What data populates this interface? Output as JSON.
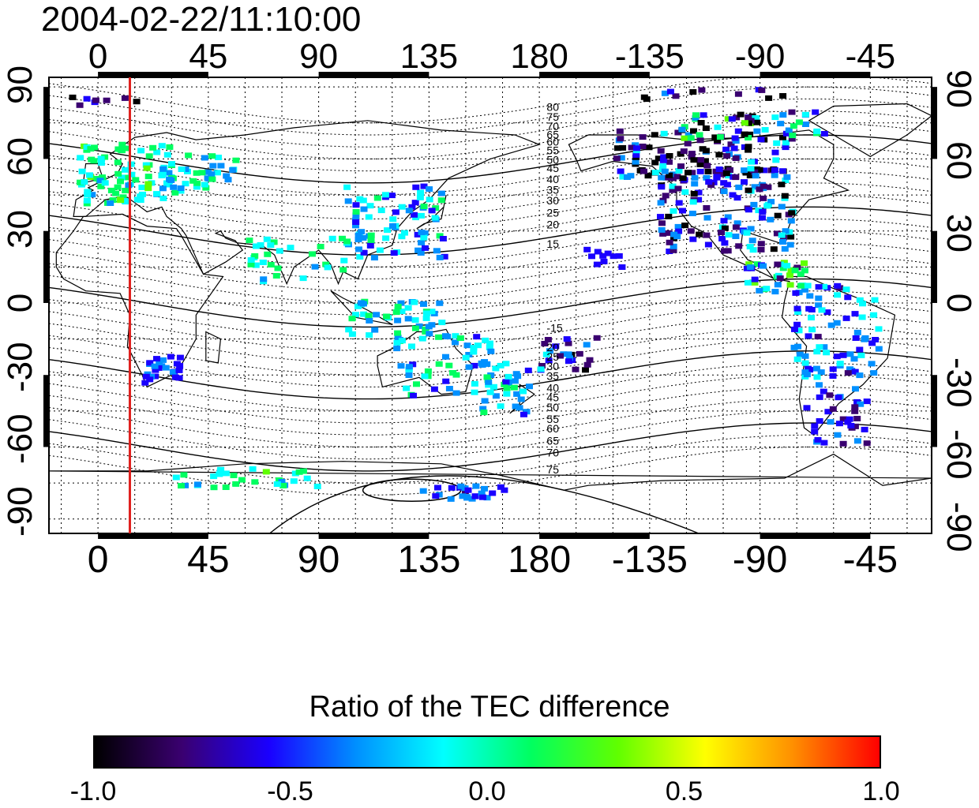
{
  "title": "2004-02-22/11:10:00",
  "map": {
    "top_axis_labels": [
      "0",
      "45",
      "90",
      "135",
      "180",
      "-135",
      "-90",
      "-45"
    ],
    "bottom_axis_labels": [
      "0",
      "45",
      "90",
      "135",
      "180",
      "-135",
      "-90",
      "-45"
    ],
    "left_axis_labels": [
      "90",
      "60",
      "30",
      "0",
      "-30",
      "-60",
      "-90"
    ],
    "right_axis_labels": [
      "90",
      "60",
      "30",
      "0",
      "-30",
      "-60",
      "-90"
    ],
    "lon_ticks": [
      0,
      45,
      90,
      135,
      180,
      225,
      270,
      315
    ],
    "lat_ticks": [
      90,
      60,
      30,
      0,
      -30,
      -60,
      -90
    ],
    "lon_range": [
      -20,
      340
    ],
    "lat_range": [
      -96,
      94
    ],
    "grid": "dotted 15-degree",
    "marker_longitude": 13,
    "marker_color": "#e0201e",
    "contour_labels_north": [
      "80",
      "75",
      "70",
      "65",
      "60",
      "55",
      "50",
      "45",
      "40",
      "35",
      "30",
      "25",
      "20",
      "15"
    ],
    "contour_labels_south": [
      "-15",
      "20",
      "25",
      "30",
      "35",
      "40",
      "45",
      "50",
      "55",
      "60",
      "65",
      "70",
      "75"
    ]
  },
  "colorbar": {
    "title": "Ratio of the TEC difference",
    "labels": [
      "-1.0",
      "-0.5",
      "0.0",
      "0.5",
      "1.0"
    ],
    "range": [
      -1.0,
      1.0
    ],
    "colors": [
      "#000000",
      "#3a0070",
      "#1a00ff",
      "#0090ff",
      "#00ffff",
      "#00ff60",
      "#60ff00",
      "#ffff00",
      "#ff9000",
      "#ff0000"
    ]
  }
}
